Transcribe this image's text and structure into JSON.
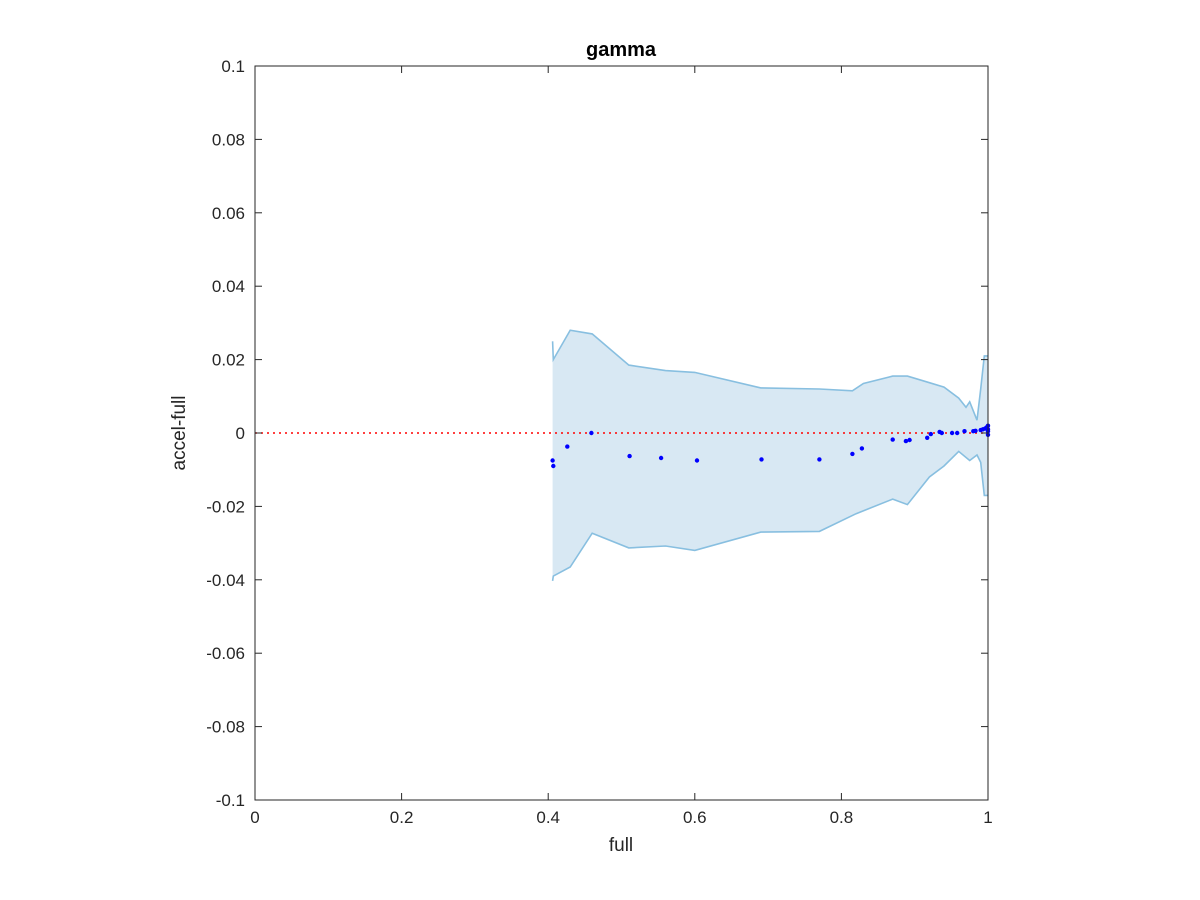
{
  "chart_data": {
    "type": "scatter",
    "title": "gamma",
    "xlabel": "full",
    "ylabel": "accel-full",
    "xlim": [
      0,
      1
    ],
    "ylim": [
      -0.1,
      0.1
    ],
    "xticks": [
      0,
      0.2,
      0.4,
      0.6,
      0.8,
      1
    ],
    "xtick_labels": [
      "0",
      "0.2",
      "0.4",
      "0.6",
      "0.8",
      "1"
    ],
    "yticks": [
      -0.1,
      -0.08,
      -0.06,
      -0.04,
      -0.02,
      0,
      0.02,
      0.04,
      0.06,
      0.08,
      0.1
    ],
    "ytick_labels": [
      "-0.1",
      "-0.08",
      "-0.06",
      "-0.04",
      "-0.02",
      "0",
      "0.02",
      "0.04",
      "0.06",
      "0.08",
      "0.1"
    ],
    "grid": false,
    "reference_line": {
      "y": 0,
      "style": "dotted",
      "color": "#ff0000"
    },
    "band": {
      "fill_color": "#d8e8f3",
      "edge_color": "#88bfe0",
      "upper": [
        [
          0.406,
          0.025
        ],
        [
          0.407,
          0.02
        ],
        [
          0.43,
          0.028
        ],
        [
          0.46,
          0.027
        ],
        [
          0.51,
          0.0185
        ],
        [
          0.56,
          0.017
        ],
        [
          0.6,
          0.0165
        ],
        [
          0.69,
          0.0123
        ],
        [
          0.77,
          0.012
        ],
        [
          0.815,
          0.0115
        ],
        [
          0.83,
          0.0135
        ],
        [
          0.87,
          0.0155
        ],
        [
          0.89,
          0.0155
        ],
        [
          0.92,
          0.0137
        ],
        [
          0.94,
          0.0125
        ],
        [
          0.96,
          0.0095
        ],
        [
          0.97,
          0.007
        ],
        [
          0.975,
          0.0085
        ],
        [
          0.985,
          0.0035
        ],
        [
          0.99,
          0.012
        ],
        [
          0.995,
          0.021
        ],
        [
          1.0,
          0.021
        ]
      ],
      "lower": [
        [
          0.406,
          -0.0403
        ],
        [
          0.407,
          -0.039
        ],
        [
          0.43,
          -0.0365
        ],
        [
          0.46,
          -0.0273
        ],
        [
          0.51,
          -0.0313
        ],
        [
          0.56,
          -0.0308
        ],
        [
          0.6,
          -0.032
        ],
        [
          0.69,
          -0.027
        ],
        [
          0.77,
          -0.0268
        ],
        [
          0.82,
          -0.022
        ],
        [
          0.87,
          -0.018
        ],
        [
          0.89,
          -0.0195
        ],
        [
          0.92,
          -0.012
        ],
        [
          0.94,
          -0.009
        ],
        [
          0.96,
          -0.005
        ],
        [
          0.975,
          -0.0075
        ],
        [
          0.985,
          -0.006
        ],
        [
          0.99,
          -0.008
        ],
        [
          0.995,
          -0.017
        ],
        [
          1.0,
          -0.017
        ]
      ]
    },
    "points": {
      "color": "#0000ff",
      "x": [
        0.406,
        0.407,
        0.426,
        0.459,
        0.511,
        0.554,
        0.603,
        0.691,
        0.77,
        0.815,
        0.828,
        0.87,
        0.888,
        0.893,
        0.917,
        0.922,
        0.934,
        0.937,
        0.951,
        0.958,
        0.968,
        0.98,
        0.983,
        0.99,
        0.993,
        0.996,
        0.998,
        1.0,
        1.0,
        1.0,
        1.0
      ],
      "y": [
        -0.0075,
        -0.009,
        -0.0037,
        0.0,
        -0.0063,
        -0.0068,
        -0.0075,
        -0.0072,
        -0.0072,
        -0.0057,
        -0.0042,
        -0.0018,
        -0.0022,
        -0.0019,
        -0.0013,
        -0.0003,
        0.0003,
        0.0,
        0.0,
        0.0,
        0.0005,
        0.0005,
        0.0006,
        0.0008,
        0.001,
        0.0012,
        0.0015,
        0.0005,
        0.002,
        0.001,
        -0.0005
      ]
    }
  }
}
